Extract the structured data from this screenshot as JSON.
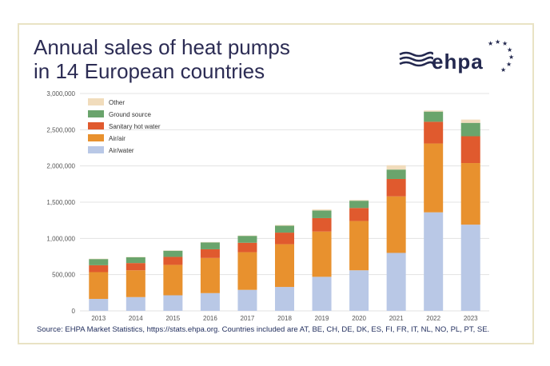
{
  "title_line1": "Annual sales of heat pumps",
  "title_line2": "in 14 European countries",
  "logo": {
    "text": "ehpa",
    "icon": "ehpa-wave-stars-logo"
  },
  "source": "Source: EHPA Market Statistics, https://stats.ehpa.org.  Countries included are AT, BE, CH, DE, DK, ES, FI, FR, IT, NL, NO, PL, PT, SE.",
  "colors": {
    "Air/water": "#b9c8e6",
    "Air/air": "#e8912e",
    "Sanitary hot water": "#e05a2e",
    "Ground source": "#6aa46c",
    "Other": "#f1dcbc"
  },
  "chart_data": {
    "type": "bar",
    "stacked": true,
    "categories": [
      "2013",
      "2014",
      "2015",
      "2016",
      "2017",
      "2018",
      "2019",
      "2020",
      "2021",
      "2022",
      "2023"
    ],
    "ylim": [
      0,
      3000000
    ],
    "yticks": [
      "0",
      "500,000",
      "1,000,000",
      "1,500,000",
      "2,000,000",
      "2,500,000",
      "3,000,000"
    ],
    "ytick_values": [
      0,
      500000,
      1000000,
      1500000,
      2000000,
      2500000,
      3000000
    ],
    "legend_position": "top-left",
    "grid": true,
    "series": [
      {
        "name": "Air/water",
        "values": [
          165000,
          190000,
          215000,
          245000,
          290000,
          330000,
          470000,
          560000,
          800000,
          1360000,
          1190000
        ]
      },
      {
        "name": "Air/air",
        "values": [
          370000,
          370000,
          420000,
          485000,
          520000,
          590000,
          625000,
          680000,
          780000,
          950000,
          850000
        ]
      },
      {
        "name": "Sanitary hot water",
        "values": [
          95000,
          100000,
          110000,
          120000,
          130000,
          160000,
          185000,
          180000,
          240000,
          300000,
          370000
        ]
      },
      {
        "name": "Ground source",
        "values": [
          85000,
          80000,
          85000,
          95000,
          95000,
          95000,
          105000,
          100000,
          130000,
          140000,
          185000
        ]
      },
      {
        "name": "Other",
        "values": [
          5000,
          5000,
          5000,
          5000,
          5000,
          10000,
          15000,
          10000,
          60000,
          15000,
          45000
        ]
      }
    ]
  }
}
